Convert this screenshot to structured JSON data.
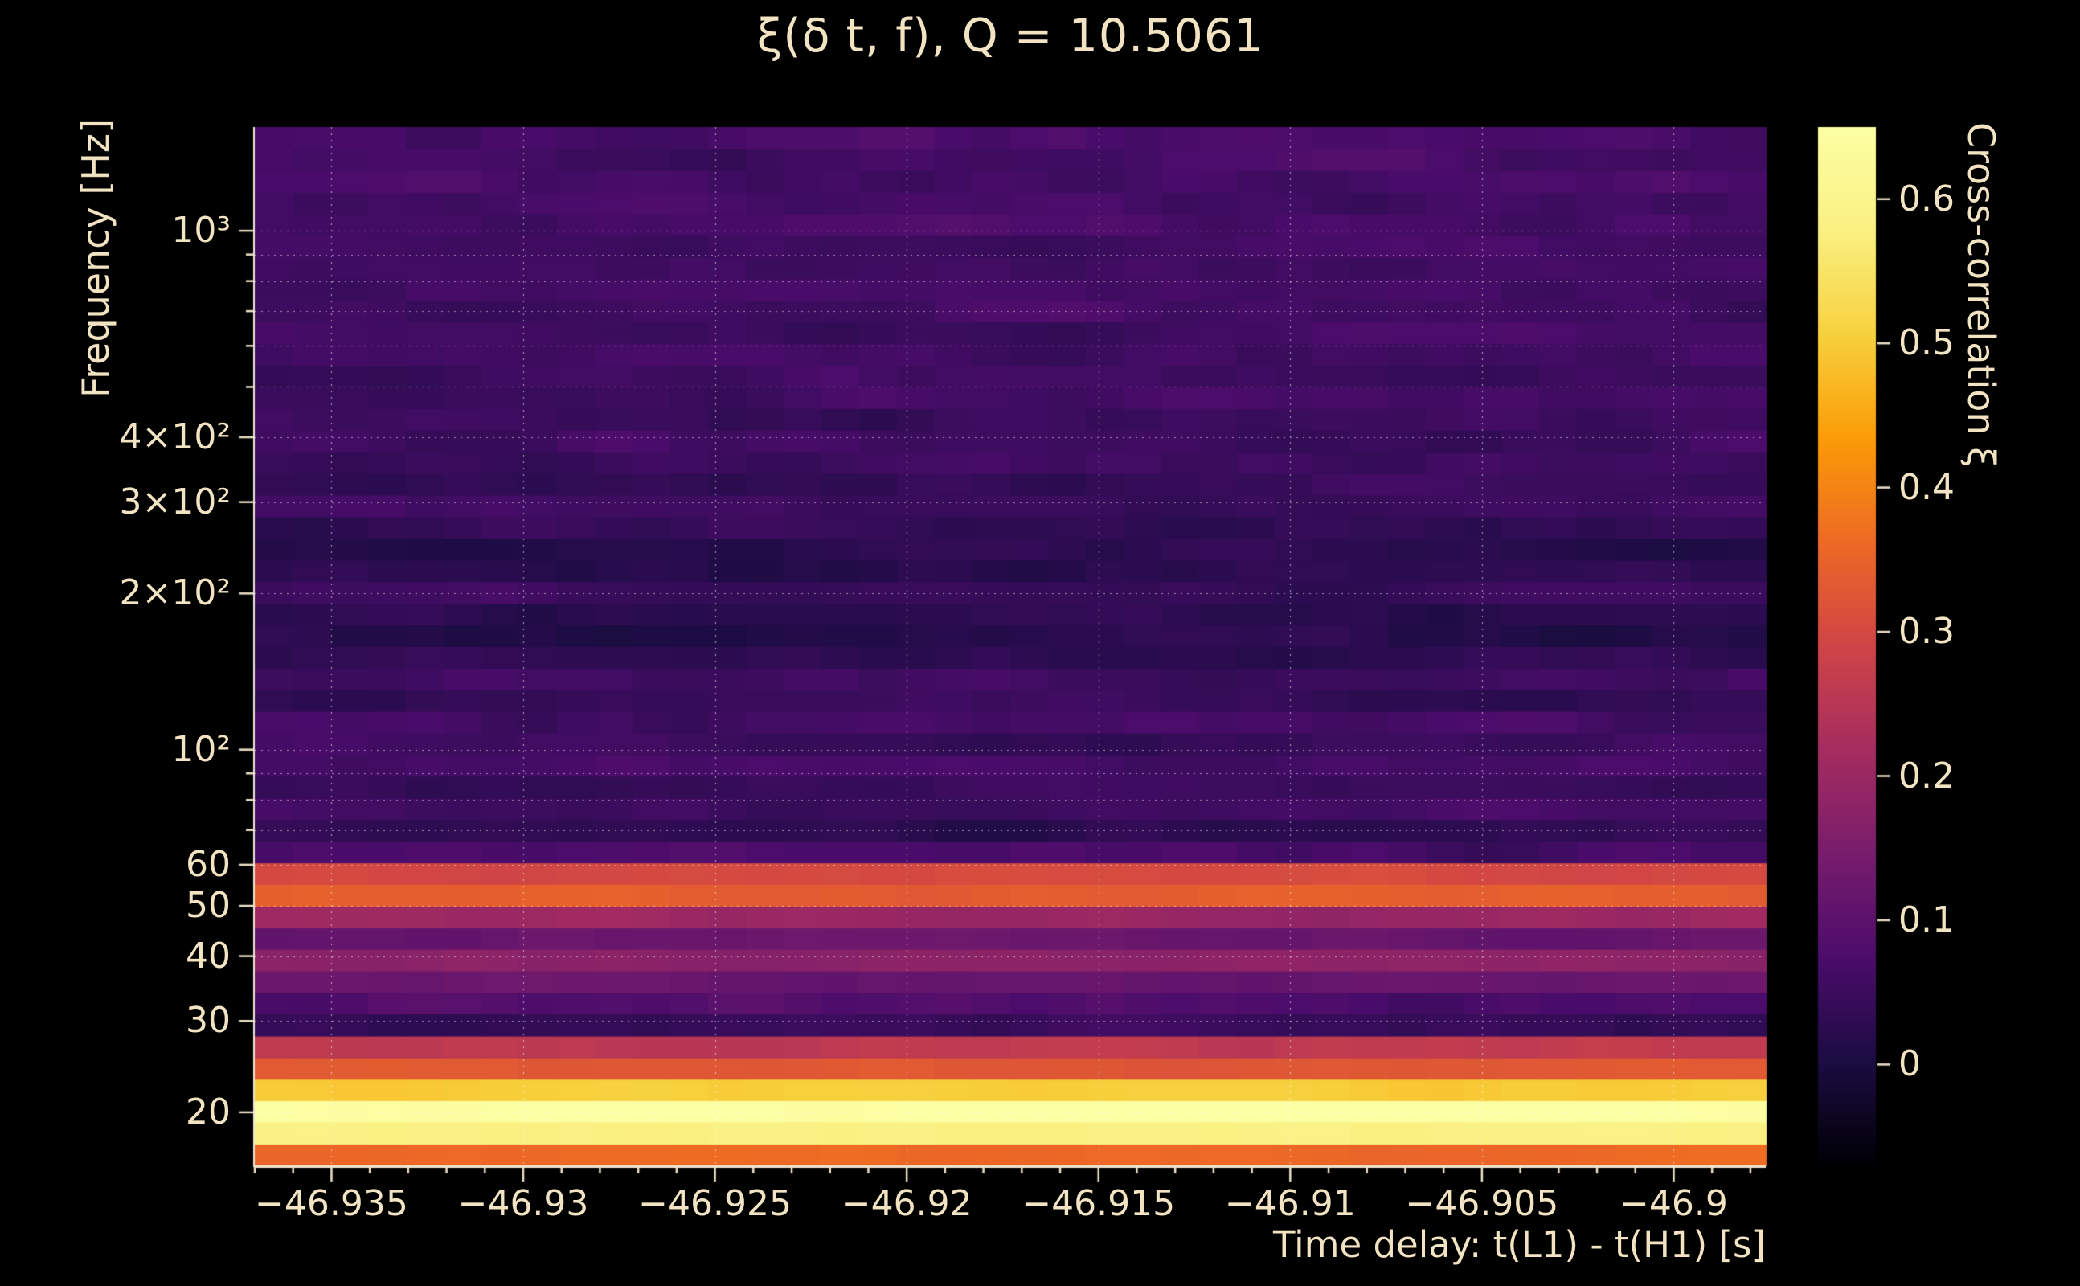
{
  "colors": {
    "background": "#000000",
    "text": "#f2e4c2",
    "tick": "#ece0c6",
    "grid": "rgba(255,255,255,0.55)",
    "spine": "#efe6d2"
  },
  "chart_data": {
    "type": "heatmap",
    "title": "ξ(δ t, f), Q = 10.5061",
    "xlabel": "Time delay: t(L1) - t(H1) [s]",
    "ylabel": "Frequency [Hz]",
    "colorbar_label": "Cross-correlation ξ",
    "colormap": "inferno",
    "x_range_s": [
      -46.937,
      -46.8976
    ],
    "y_range_hz": [
      15.8,
      1585
    ],
    "y_scale": "log",
    "value_range": [
      -0.07,
      0.65
    ],
    "x_tick_step": 0.005,
    "x_minor_tick_step": 0.001,
    "x_ticks": [
      {
        "t": -46.935,
        "label": "−46.935"
      },
      {
        "t": -46.93,
        "label": "−46.93"
      },
      {
        "t": -46.925,
        "label": "−46.925"
      },
      {
        "t": -46.92,
        "label": "−46.92"
      },
      {
        "t": -46.915,
        "label": "−46.915"
      },
      {
        "t": -46.91,
        "label": "−46.91"
      },
      {
        "t": -46.905,
        "label": "−46.905"
      },
      {
        "t": -46.9,
        "label": "−46.9"
      }
    ],
    "y_ticks": [
      {
        "f": 1000,
        "label": "10³"
      },
      {
        "f": 400,
        "label": "4×10²"
      },
      {
        "f": 300,
        "label": "3×10²"
      },
      {
        "f": 200,
        "label": "2×10²"
      },
      {
        "f": 100,
        "label": "10²"
      },
      {
        "f": 60,
        "label": "60"
      },
      {
        "f": 50,
        "label": "50"
      },
      {
        "f": 40,
        "label": "40"
      },
      {
        "f": 30,
        "label": "30"
      },
      {
        "f": 20,
        "label": "20"
      }
    ],
    "y_grid_hz": [
      20,
      30,
      40,
      50,
      60,
      70,
      80,
      90,
      100,
      200,
      300,
      400,
      500,
      600,
      700,
      800,
      900,
      1000
    ],
    "colorbar_ticks": [
      {
        "v": 0.6,
        "label": "0.6"
      },
      {
        "v": 0.5,
        "label": "0.5"
      },
      {
        "v": 0.4,
        "label": "0.4"
      },
      {
        "v": 0.3,
        "label": "0.3"
      },
      {
        "v": 0.2,
        "label": "0.2"
      },
      {
        "v": 0.1,
        "label": "0.1"
      },
      {
        "v": 0.0,
        "label": "0"
      }
    ],
    "time_columns": 40,
    "values_uniform_in_time": true,
    "frequency_rows_format": [
      "f_lo_hz",
      "f_hi_hz",
      "xi"
    ],
    "frequency_rows": [
      [
        15.8,
        17.4,
        0.36
      ],
      [
        17.4,
        19.2,
        0.58
      ],
      [
        19.2,
        21.1,
        0.65
      ],
      [
        21.1,
        23.2,
        0.5
      ],
      [
        23.2,
        25.5,
        0.33
      ],
      [
        25.5,
        28.1,
        0.26
      ],
      [
        28.1,
        31.0,
        0.04
      ],
      [
        31.0,
        34.1,
        0.08
      ],
      [
        34.1,
        37.5,
        0.12
      ],
      [
        37.5,
        41.3,
        0.18
      ],
      [
        41.3,
        45.4,
        0.12
      ],
      [
        45.4,
        50.0,
        0.2
      ],
      [
        50.0,
        55.1,
        0.34
      ],
      [
        55.1,
        60.6,
        0.3
      ],
      [
        60.6,
        66.7,
        0.07
      ],
      [
        66.7,
        73.4,
        0.03
      ],
      [
        73.4,
        80.8,
        0.06
      ],
      [
        80.8,
        89.0,
        0.045
      ],
      [
        89.0,
        97.9,
        0.07
      ],
      [
        97.9,
        107.8,
        0.05
      ],
      [
        107.8,
        118.7,
        0.06
      ],
      [
        118.7,
        130.6,
        0.04
      ],
      [
        130.6,
        143.8,
        0.055
      ],
      [
        143.8,
        158.3,
        0.03
      ],
      [
        158.3,
        174.2,
        0.02
      ],
      [
        174.2,
        191.8,
        0.03
      ],
      [
        191.8,
        211.1,
        0.045
      ],
      [
        211.1,
        232.4,
        0.025
      ],
      [
        232.4,
        255.8,
        0.02
      ],
      [
        255.8,
        281.6,
        0.035
      ],
      [
        281.6,
        310.0,
        0.05
      ],
      [
        310.0,
        341.2,
        0.04
      ],
      [
        341.2,
        375.5,
        0.05
      ],
      [
        375.5,
        413.4,
        0.055
      ],
      [
        413.4,
        455.0,
        0.05
      ],
      [
        455.0,
        500.8,
        0.06
      ],
      [
        500.8,
        551.3,
        0.05
      ],
      [
        551.3,
        606.8,
        0.06
      ],
      [
        606.8,
        667.9,
        0.055
      ],
      [
        667.9,
        735.2,
        0.06
      ],
      [
        735.2,
        809.3,
        0.065
      ],
      [
        809.3,
        890.8,
        0.055
      ],
      [
        890.8,
        980.5,
        0.06
      ],
      [
        980.5,
        1079,
        0.07
      ],
      [
        1079,
        1188,
        0.06
      ],
      [
        1188,
        1308,
        0.065
      ],
      [
        1308,
        1440,
        0.06
      ],
      [
        1440,
        1585,
        0.07
      ]
    ]
  }
}
